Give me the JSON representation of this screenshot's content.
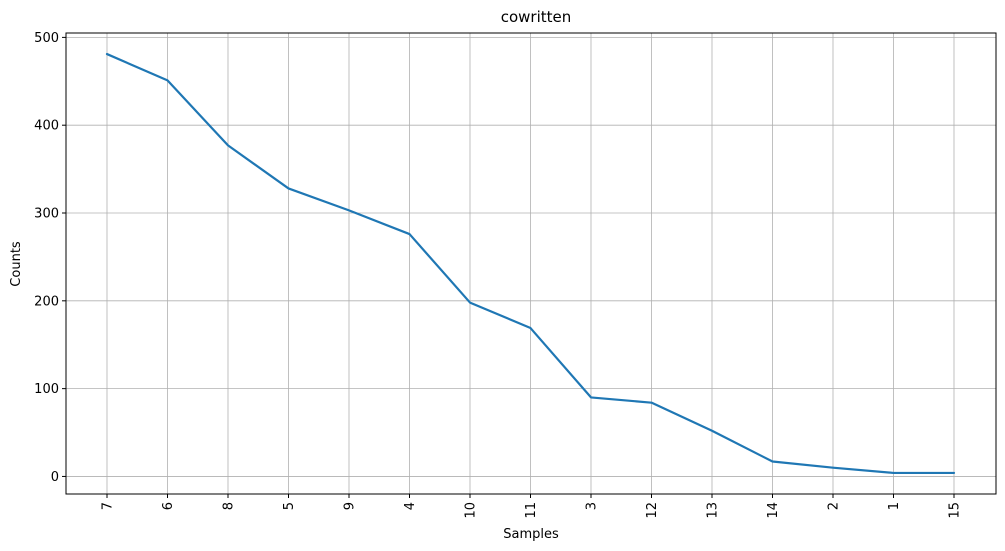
{
  "chart_data": {
    "type": "line",
    "title": "cowritten",
    "xlabel": "Samples",
    "ylabel": "Counts",
    "categories": [
      "7",
      "6",
      "8",
      "5",
      "9",
      "4",
      "10",
      "11",
      "3",
      "12",
      "13",
      "14",
      "2",
      "1",
      "15"
    ],
    "series": [
      {
        "values": [
          481,
          451,
          377,
          328,
          303,
          276,
          198,
          169,
          90,
          84,
          52,
          17,
          10,
          4,
          4
        ]
      }
    ],
    "ylim": [
      -20,
      505
    ],
    "yticks": [
      0,
      100,
      200,
      300,
      400,
      500
    ],
    "grid": true,
    "line_color": "#1f77b4",
    "x_tick_rotation": "vertical"
  }
}
